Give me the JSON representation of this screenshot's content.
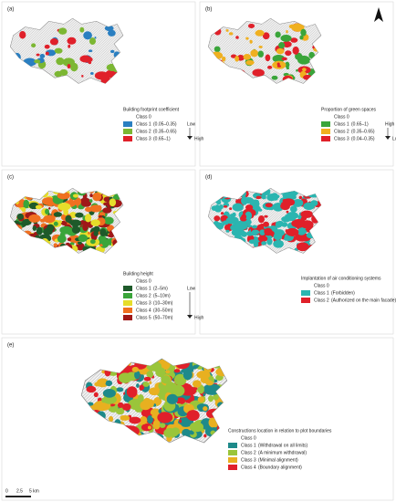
{
  "panels": [
    {
      "label": "(a)",
      "legend_title": "Building footprint coefficient",
      "class0": "Class 0",
      "classes": [
        {
          "name": "Class 1",
          "range": "(0.05–0.35)",
          "color": "#2a7fc1"
        },
        {
          "name": "Class 2",
          "range": "(0.35–0.65)",
          "color": "#7cb733"
        },
        {
          "name": "Class 3",
          "range": "(0.65–1)",
          "color": "#e0202a"
        }
      ],
      "scale_top": "Low",
      "scale_bottom": "High"
    },
    {
      "label": "(b)",
      "legend_title": "Proportion of green spaces",
      "class0": "Class 0",
      "classes": [
        {
          "name": "Class 1",
          "range": "(0.65–1)",
          "color": "#3aa53a"
        },
        {
          "name": "Class 2",
          "range": "(0.35–0.65)",
          "color": "#f0b020"
        },
        {
          "name": "Class 3",
          "range": "(0.04–0.35)",
          "color": "#e0202a"
        }
      ],
      "scale_top": "High",
      "scale_bottom": "Low"
    },
    {
      "label": "(c)",
      "legend_title": "Building height",
      "class0": "Class 0",
      "classes": [
        {
          "name": "Class 1",
          "range": "(2–5m)",
          "color": "#1e5a2a"
        },
        {
          "name": "Class 2",
          "range": "(5–10m)",
          "color": "#3aa53a"
        },
        {
          "name": "Class 3",
          "range": "(10–30m)",
          "color": "#e6dd2a"
        },
        {
          "name": "Class 4",
          "range": "(30–50m)",
          "color": "#f07020"
        },
        {
          "name": "Class 5",
          "range": "(50–70m)",
          "color": "#a01818"
        }
      ],
      "scale_top": "Low",
      "scale_bottom": "High"
    },
    {
      "label": "(d)",
      "legend_title": "Implantation of air conditioning systems",
      "class0": "Class 0",
      "classes": [
        {
          "name": "Class 1",
          "range": "(Forbidden)",
          "color": "#2bb5b0"
        },
        {
          "name": "Class 2",
          "range": "(Authorized on the main facade)",
          "color": "#e0202a"
        }
      ]
    },
    {
      "label": "(e)",
      "legend_title": "Constructions location in relation to plot boundaries",
      "class0": "Class 0",
      "classes": [
        {
          "name": "Class 1",
          "range": "(Withdrawal on all limits)",
          "color": "#1e8a8a"
        },
        {
          "name": "Class 2",
          "range": "(A minimum withdrawal)",
          "color": "#9ac53a"
        },
        {
          "name": "Class 3",
          "range": "(Minimal alignment)",
          "color": "#e8b020"
        },
        {
          "name": "Class 4",
          "range": "(Boundary alignment)",
          "color": "#e0202a"
        }
      ]
    }
  ],
  "scale_bar": [
    "0",
    "2.5",
    "5 km"
  ]
}
